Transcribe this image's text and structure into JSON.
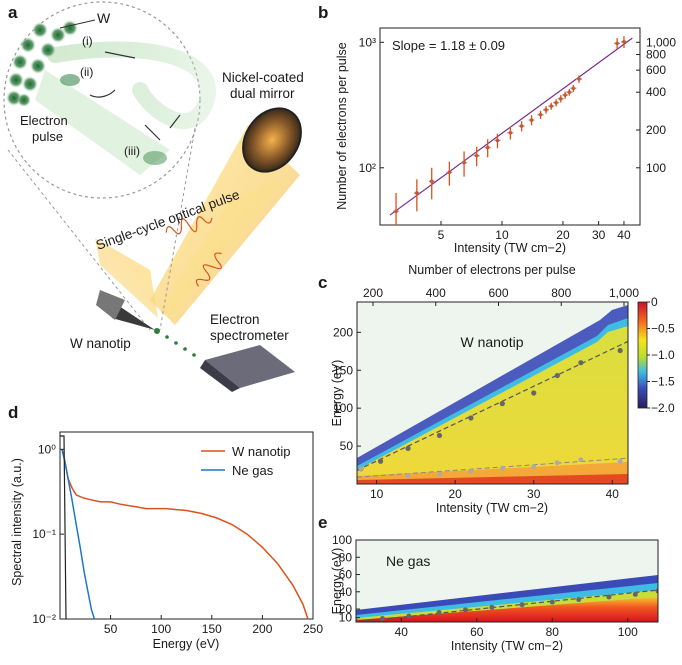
{
  "panel_labels": {
    "a": "a",
    "b": "b",
    "c": "c",
    "d": "d",
    "e": "e"
  },
  "panel_a": {
    "w_label": "W",
    "step_i": "(i)",
    "step_ii": "(ii)",
    "step_iii": "(iii)",
    "electron_pulse": [
      "Electron",
      "pulse"
    ],
    "mirror": [
      "Nickel-coated",
      "dual mirror"
    ],
    "optical_pulse": "Single-cycle optical pulse",
    "nanotip": "W nanotip",
    "spectrometer": [
      "Electron",
      "spectrometer"
    ]
  },
  "colors": {
    "orange_series": "#d9531e",
    "blue_series": "#1f77c8",
    "fit_line": "#7a2a8c",
    "errbar": "#d9531e",
    "marker": "#555555"
  },
  "chart_data": [
    {
      "panel": "b",
      "type": "scatter",
      "xlabel": "Intensity (TW cm−2)",
      "ylabel": "Number of electrons per pulse",
      "annotation": "Slope = 1.18 ± 0.09",
      "x_scale": "log",
      "y_scale": "log",
      "xlim": [
        2.5,
        48
      ],
      "ylim": [
        35,
        1300
      ],
      "x_ticks": [
        "5",
        "10",
        "20",
        "30",
        "40"
      ],
      "y_ticks_left": [
        "10²",
        "10³"
      ],
      "y_ticks_right": [
        "100",
        "200",
        "400",
        "600",
        "800",
        "1,000"
      ],
      "x": [
        3.0,
        3.8,
        4.5,
        5.5,
        6.5,
        7.5,
        8.5,
        9.5,
        11.0,
        12.5,
        14.0,
        15.5,
        16.5,
        17.5,
        18.5,
        19.5,
        20.5,
        21.5,
        22.5,
        24.0,
        37.0,
        40.0
      ],
      "y": [
        45,
        63,
        78,
        92,
        110,
        125,
        145,
        165,
        190,
        215,
        240,
        265,
        290,
        310,
        330,
        355,
        380,
        400,
        430,
        510,
        980,
        1010
      ],
      "yerr": [
        18,
        18,
        22,
        20,
        25,
        22,
        24,
        22,
        22,
        20,
        22,
        20,
        20,
        20,
        22,
        24,
        25,
        24,
        28,
        35,
        100,
        110
      ],
      "fit": {
        "x": [
          2.8,
          44
        ],
        "y": [
          42,
          1080
        ]
      }
    },
    {
      "panel": "c",
      "type": "heatmap",
      "title": "W nanotip",
      "xlabel": "Intensity (TW cm−2)",
      "ylabel": "Energy (eV)",
      "top_xlabel": "Number of electrons per pulse",
      "xlim": [
        7.5,
        42
      ],
      "ylim": [
        0,
        240
      ],
      "x_ticks": [
        "10",
        "20",
        "30",
        "40"
      ],
      "y_ticks": [
        "50",
        "100",
        "150",
        "200"
      ],
      "top_ticks": [
        "200",
        "400",
        "600",
        "800",
        "1,000"
      ],
      "colorbar_ticks": [
        "0",
        "−0.5",
        "−1.0",
        "−1.5",
        "−2.0"
      ],
      "cutoff_points": {
        "x": [
          8,
          10.5,
          14,
          18,
          22,
          26,
          30,
          33,
          36,
          41
        ],
        "y": [
          20,
          30,
          47,
          64,
          87,
          106,
          120,
          143,
          160,
          176
        ]
      },
      "low_points": {
        "x": [
          8,
          14,
          18,
          22,
          26,
          30,
          33,
          36,
          41
        ],
        "y": [
          20,
          11,
          13,
          17,
          21,
          23,
          28,
          32,
          30
        ]
      }
    },
    {
      "panel": "d",
      "type": "line",
      "xlabel": "Energy (eV)",
      "ylabel": "Spectral intensity (a.u.)",
      "y_scale": "log",
      "xlim": [
        0,
        250
      ],
      "ylim": [
        0.01,
        1.6
      ],
      "x_ticks": [
        "50",
        "100",
        "150",
        "200",
        "250"
      ],
      "y_ticks": [
        "10⁰",
        "10⁻¹",
        "10⁻²"
      ],
      "series": [
        {
          "name": "W nanotip",
          "x": [
            2,
            5,
            8,
            12,
            16,
            22,
            30,
            40,
            50,
            60,
            75,
            85,
            95,
            105,
            115,
            125,
            140,
            155,
            170,
            185,
            200,
            215,
            230,
            240,
            245
          ],
          "y": [
            1.0,
            0.7,
            0.45,
            0.35,
            0.29,
            0.27,
            0.255,
            0.24,
            0.24,
            0.225,
            0.21,
            0.2,
            0.2,
            0.2,
            0.195,
            0.19,
            0.175,
            0.155,
            0.13,
            0.1,
            0.07,
            0.045,
            0.025,
            0.015,
            0.01
          ]
        },
        {
          "name": "Ne gas",
          "x": [
            2,
            5,
            8,
            12,
            16,
            20,
            24,
            28,
            31,
            34
          ],
          "y": [
            1.0,
            0.7,
            0.45,
            0.25,
            0.13,
            0.07,
            0.035,
            0.02,
            0.013,
            0.01
          ]
        }
      ]
    },
    {
      "panel": "e",
      "type": "heatmap",
      "title": "Ne gas",
      "xlabel": "Intensity (TW cm−2)",
      "ylabel": "Energy (eV)",
      "xlim": [
        28,
        108
      ],
      "ylim": [
        5,
        100
      ],
      "x_ticks": [
        "40",
        "60",
        "80",
        "100"
      ],
      "y_ticks": [
        "20",
        "40",
        "60",
        "80",
        "100"
      ],
      "y_ticks_minor": [
        "10"
      ],
      "cutoff_points": {
        "x": [
          28,
          35,
          42,
          50,
          57,
          64,
          72,
          80,
          87,
          95,
          102,
          108
        ],
        "y": [
          6,
          9,
          12,
          16,
          19,
          22,
          25,
          28,
          31,
          34,
          37,
          41
        ]
      }
    }
  ]
}
